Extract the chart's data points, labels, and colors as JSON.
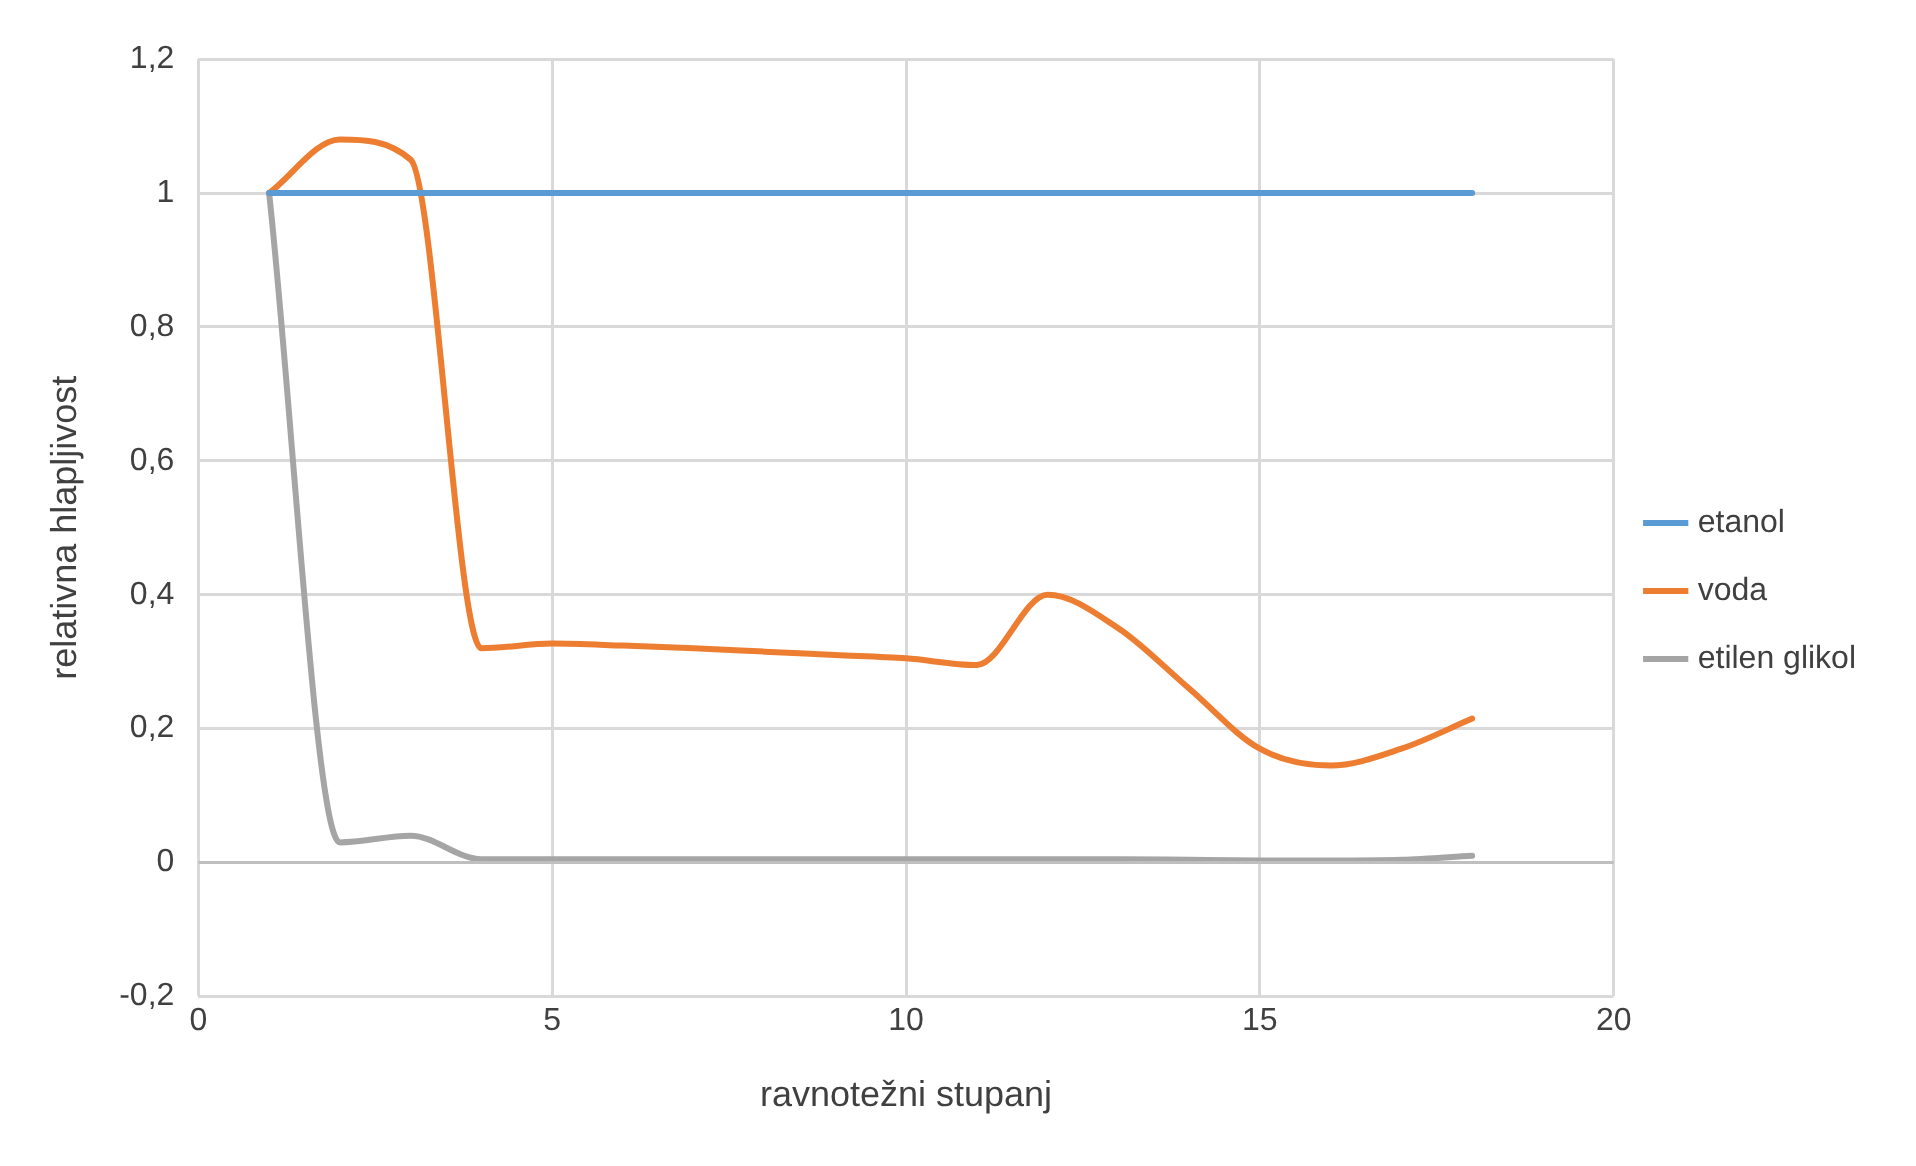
{
  "chart_data": {
    "type": "line",
    "xlabel": "ravnotežni stupanj",
    "ylabel": "relativna hlapljivost",
    "x": [
      1,
      2,
      3,
      4,
      5,
      6,
      7,
      8,
      9,
      10,
      11,
      12,
      13,
      14,
      15,
      16,
      17,
      18
    ],
    "series": [
      {
        "name": "etanol",
        "color": "#5b9bd5",
        "values": [
          1,
          1,
          1,
          1,
          1,
          1,
          1,
          1,
          1,
          1,
          1,
          1,
          1,
          1,
          1,
          1,
          1,
          1
        ]
      },
      {
        "name": "voda",
        "color": "#ed7d31",
        "values": [
          1,
          1.08,
          1.05,
          0.32,
          0.327,
          0.324,
          0.32,
          0.315,
          0.31,
          0.305,
          0.295,
          0.4,
          0.35,
          0.26,
          0.17,
          0.145,
          0.17,
          0.215
        ]
      },
      {
        "name": "etilen glikol",
        "color": "#a5a5a5",
        "values": [
          1,
          0.03,
          0.04,
          0.005,
          0.005,
          0.005,
          0.005,
          0.005,
          0.005,
          0.005,
          0.005,
          0.005,
          0.005,
          0.004,
          0.003,
          0.003,
          0.004,
          0.01
        ]
      }
    ],
    "xlim": [
      0,
      20
    ],
    "xticks": [
      0,
      5,
      10,
      15,
      20
    ],
    "ylim": [
      -0.2,
      1.2
    ],
    "yticks": [
      {
        "value": -0.2,
        "label": "-0,2"
      },
      0,
      {
        "value": 0.2,
        "label": "0,2"
      },
      {
        "value": 0.4,
        "label": "0,4"
      },
      {
        "value": 0.6,
        "label": "0,6"
      },
      {
        "value": 0.8,
        "label": "0,8"
      },
      1,
      {
        "value": 1.2,
        "label": "1,2"
      }
    ],
    "grid": true,
    "legend": "right",
    "marker": "none",
    "line_style": "solid"
  }
}
